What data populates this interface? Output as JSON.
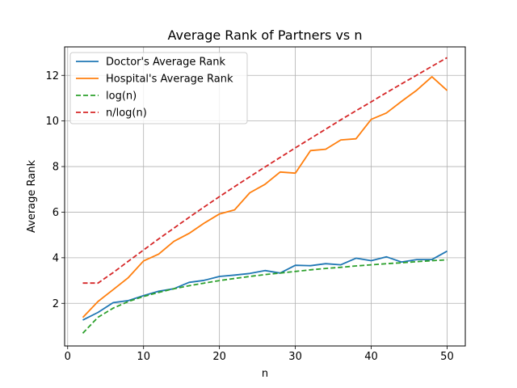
{
  "chart_data": {
    "type": "line",
    "title": "Average Rank of Partners vs n",
    "xlabel": "n",
    "ylabel": "Average Rank",
    "xlim": [
      -0.4,
      52.4
    ],
    "ylim": [
      0.13,
      13.25
    ],
    "xticks": [
      0,
      10,
      20,
      30,
      40,
      50
    ],
    "yticks": [
      2,
      4,
      6,
      8,
      10,
      12
    ],
    "grid": true,
    "legend_position": "top-left",
    "x": [
      2,
      4,
      6,
      8,
      10,
      12,
      14,
      16,
      18,
      20,
      22,
      24,
      26,
      28,
      30,
      32,
      34,
      36,
      38,
      40,
      42,
      44,
      46,
      48,
      50
    ],
    "series": [
      {
        "name": "Doctor's Average Rank",
        "color": "#1f77b4",
        "dash": "solid",
        "values": [
          1.27,
          1.6,
          2.03,
          2.12,
          2.34,
          2.53,
          2.64,
          2.92,
          3.01,
          3.18,
          3.24,
          3.31,
          3.44,
          3.33,
          3.67,
          3.65,
          3.74,
          3.69,
          3.98,
          3.87,
          4.04,
          3.81,
          3.92,
          3.92,
          4.29
        ]
      },
      {
        "name": "Hospital's Average Rank",
        "color": "#ff7f0e",
        "dash": "solid",
        "values": [
          1.38,
          2.08,
          2.6,
          3.13,
          3.86,
          4.16,
          4.72,
          5.07,
          5.52,
          5.92,
          6.1,
          6.85,
          7.22,
          7.76,
          7.71,
          8.7,
          8.76,
          9.17,
          9.22,
          10.07,
          10.35,
          10.86,
          11.35,
          11.94,
          11.34
        ]
      },
      {
        "name": "log(n)",
        "color": "#2ca02c",
        "dash": "dashed",
        "values": [
          0.69,
          1.39,
          1.79,
          2.08,
          2.3,
          2.48,
          2.64,
          2.77,
          2.89,
          3.0,
          3.09,
          3.18,
          3.26,
          3.33,
          3.4,
          3.47,
          3.53,
          3.58,
          3.64,
          3.69,
          3.74,
          3.78,
          3.83,
          3.87,
          3.91
        ]
      },
      {
        "name": "n/log(n)",
        "color": "#d62728",
        "dash": "dashed",
        "values": [
          2.89,
          2.89,
          3.35,
          3.85,
          4.34,
          4.83,
          5.3,
          5.77,
          6.23,
          6.68,
          7.12,
          7.55,
          7.98,
          8.4,
          8.82,
          9.23,
          9.64,
          10.05,
          10.45,
          10.84,
          11.24,
          11.63,
          12.01,
          12.4,
          12.78
        ]
      }
    ]
  }
}
